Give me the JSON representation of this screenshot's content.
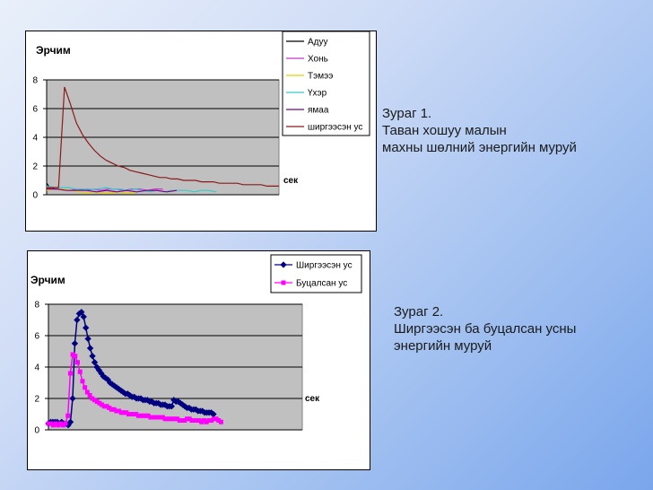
{
  "chart_data": [
    {
      "type": "line",
      "title": "Эрчим",
      "xlabel": "сек",
      "ylabel": "",
      "ylim": [
        0,
        8
      ],
      "yticks": [
        0,
        2,
        4,
        6,
        8
      ],
      "grid": true,
      "legend_position": "top-right",
      "series": [
        {
          "name": "Адуу",
          "color": "#000000",
          "values": [
            0.8,
            0.6,
            0.5,
            0.5,
            0.4,
            0.4,
            0.4,
            0.4
          ]
        },
        {
          "name": "Хонь",
          "color": "#cc33cc",
          "values": [
            0.5,
            0.4,
            0.4,
            0.3,
            0.4,
            0.3,
            0.4,
            0.3,
            0.4,
            0.4,
            0.3,
            0.4,
            0.4,
            0.3,
            0.4,
            0.4
          ]
        },
        {
          "name": "Тэмээ",
          "color": "#e6d200",
          "values": [
            0.3,
            0.4,
            0.4,
            0.3,
            0.2,
            0.1,
            0.2,
            0.1,
            0.1,
            0.2,
            0.1,
            0.1
          ]
        },
        {
          "name": "Үхэр",
          "color": "#33cccc",
          "values": [
            0.6,
            0.5,
            0.5,
            0.5,
            0.4,
            0.4,
            0.4,
            0.4,
            0.5,
            0.4,
            0.4,
            0.3,
            0.4,
            0.3,
            0.2,
            0.3,
            0.2,
            0.3,
            0.3,
            0.3,
            0.2,
            0.3,
            0.3,
            0.2
          ]
        },
        {
          "name": "ямаа",
          "color": "#800080",
          "values": [
            0.4,
            0.4,
            0.3,
            0.3,
            0.3,
            0.2,
            0.3,
            0.2,
            0.3,
            0.2,
            0.3,
            0.3,
            0.2,
            0.3
          ]
        },
        {
          "name": "ширгээсэн ус",
          "color": "#8b1a1a",
          "values": [
            0.5,
            0.5,
            0.5,
            7.5,
            6.3,
            5.0,
            4.2,
            3.6,
            3.1,
            2.7,
            2.4,
            2.2,
            2.0,
            1.9,
            1.7,
            1.6,
            1.5,
            1.4,
            1.3,
            1.2,
            1.2,
            1.1,
            1.1,
            1.0,
            1.0,
            1.0,
            0.9,
            0.9,
            0.9,
            0.8,
            0.8,
            0.8,
            0.8,
            0.7,
            0.7,
            0.7,
            0.7,
            0.6,
            0.6,
            0.6
          ]
        }
      ]
    },
    {
      "type": "line",
      "title": "Эрчим",
      "xlabel": "сек",
      "ylabel": "",
      "ylim": [
        0,
        8
      ],
      "yticks": [
        0,
        2,
        4,
        6,
        8
      ],
      "grid": true,
      "legend_position": "top-right",
      "series": [
        {
          "name": "Ширгээсэн ус",
          "color": "#000080",
          "marker": "diamond",
          "values": [
            0.4,
            0.5,
            0.5,
            0.5,
            0.5,
            0.4,
            0.5,
            0.4,
            0.4,
            0.3,
            0.5,
            2.0,
            5.5,
            7.0,
            7.4,
            7.5,
            7.2,
            6.5,
            5.8,
            5.2,
            4.7,
            4.3,
            4.0,
            3.8,
            3.6,
            3.4,
            3.3,
            3.2,
            3.0,
            2.9,
            2.8,
            2.7,
            2.6,
            2.5,
            2.4,
            2.3,
            2.3,
            2.2,
            2.1,
            2.1,
            2.0,
            2.0,
            2.0,
            1.9,
            1.9,
            1.9,
            1.8,
            1.8,
            1.7,
            1.7,
            1.7,
            1.6,
            1.6,
            1.6,
            1.5,
            1.5,
            1.5,
            1.9,
            1.8,
            1.8,
            1.7,
            1.6,
            1.5,
            1.4,
            1.4,
            1.3,
            1.3,
            1.3,
            1.2,
            1.2,
            1.2,
            1.1,
            1.1,
            1.1,
            1.1,
            1.0
          ]
        },
        {
          "name": "Буцалсан ус",
          "color": "#ff00ff",
          "marker": "square",
          "values": [
            0.4,
            0.4,
            0.3,
            0.4,
            0.3,
            0.4,
            0.3,
            0.4,
            0.9,
            3.6,
            4.8,
            4.7,
            4.3,
            3.7,
            3.1,
            2.7,
            2.4,
            2.2,
            2.0,
            1.9,
            1.8,
            1.7,
            1.6,
            1.5,
            1.5,
            1.4,
            1.3,
            1.3,
            1.2,
            1.2,
            1.1,
            1.1,
            1.1,
            1.0,
            1.0,
            1.0,
            1.0,
            0.9,
            0.9,
            0.9,
            0.9,
            0.9,
            0.8,
            0.8,
            0.8,
            0.8,
            0.8,
            0.8,
            0.7,
            0.7,
            0.7,
            0.7,
            0.7,
            0.7,
            0.6,
            0.6,
            0.6,
            0.7,
            0.7,
            0.6,
            0.6,
            0.6,
            0.6,
            0.5,
            0.6,
            0.5,
            0.6,
            0.6,
            0.7,
            0.7,
            0.6,
            0.5
          ]
        }
      ]
    }
  ],
  "captions": [
    {
      "lines": [
        "Зураг 1.",
        "Таван хошуу малын",
        "махны шөлний энергийн муруй"
      ]
    },
    {
      "lines": [
        "Зураг 2.",
        "Ширгээсэн ба буцалсан усны",
        "энергийн муруй"
      ]
    }
  ]
}
